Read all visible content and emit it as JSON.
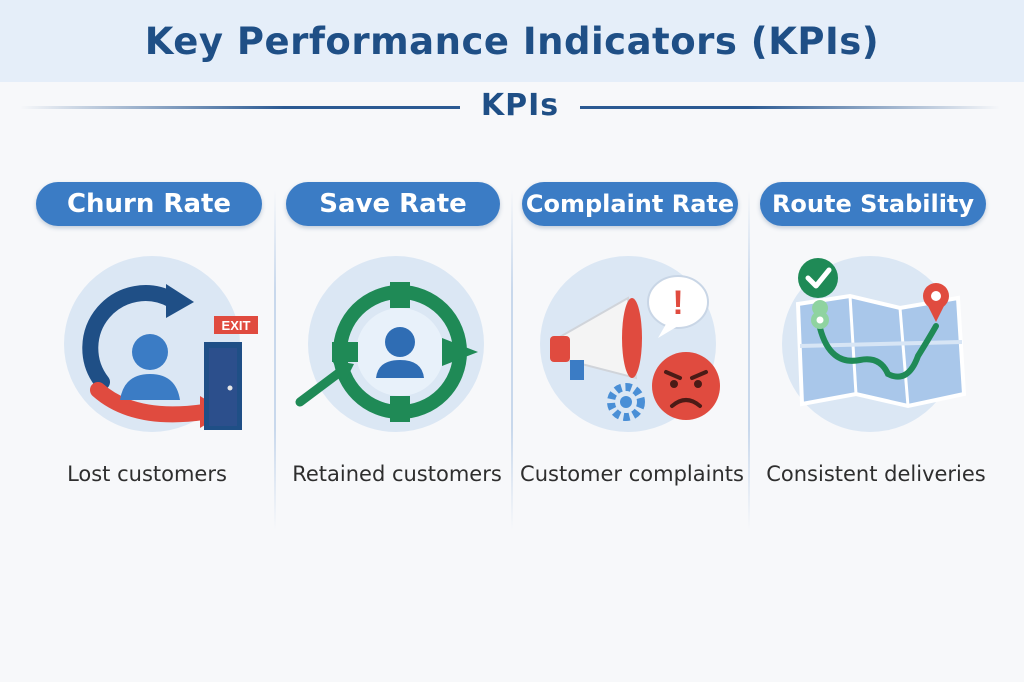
{
  "header": {
    "title": "Key Performance Indicators (KPIs)"
  },
  "section": {
    "label": "KPIs"
  },
  "kpis": [
    {
      "title": "Churn Rate",
      "caption": "Lost customers",
      "icon": "churn-exit-door-icon",
      "exit_sign": "EXIT"
    },
    {
      "title": "Save Rate",
      "caption": "Retained customers",
      "icon": "lifebuoy-customer-icon"
    },
    {
      "title": "Complaint Rate",
      "caption": "Customer complaints",
      "icon": "megaphone-angry-face-icon",
      "alert_mark": "!"
    },
    {
      "title": "Route Stability",
      "caption": "Consistent deliveries",
      "icon": "map-route-check-icon"
    }
  ],
  "colors": {
    "title_band": "#e5eef9",
    "title_text": "#1f4f86",
    "pill": "#3b7cc5",
    "icon_circle": "#dbe7f4",
    "red": "#e04b3f",
    "green": "#1f8a56",
    "navy": "#1f4f86"
  }
}
